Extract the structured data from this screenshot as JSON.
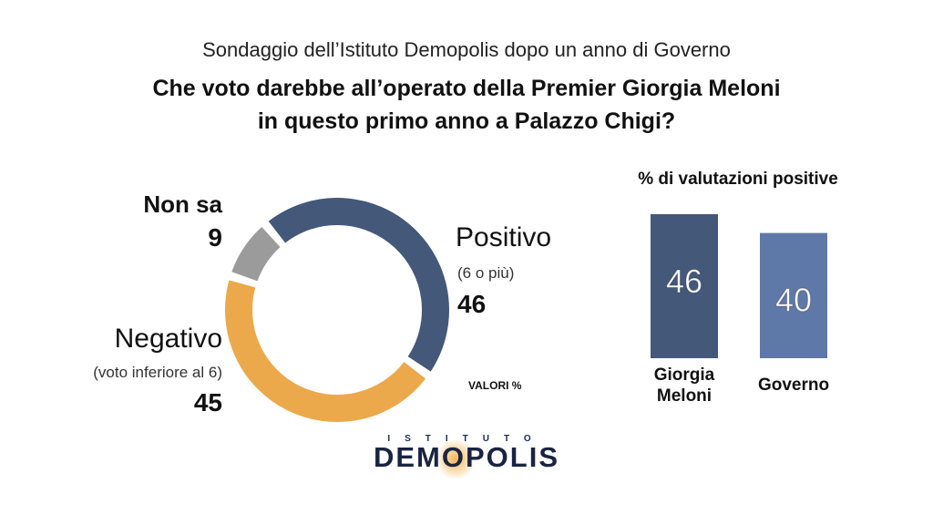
{
  "header": {
    "subtitle": "Sondaggio dell’Istituto Demopolis dopo un anno di Governo",
    "title_line1": "Che voto darebbe all’operato della Premier Giorgia Meloni",
    "title_line2": "in questo primo anno a Palazzo Chigi?"
  },
  "donut_labels": {
    "positivo": {
      "name": "Positivo",
      "note": "(6 o più)",
      "value": "46"
    },
    "negativo": {
      "name": "Negativo",
      "note": "(voto inferiore al 6)",
      "value": "45"
    },
    "nonsa": {
      "name": "Non sa",
      "value": "9"
    }
  },
  "valori_note": "VALORI %",
  "bars_title": "% di valutazioni positive",
  "logo": {
    "top": "ISTITUTO",
    "main": "DEMOPOLIS"
  },
  "chart_data": [
    {
      "type": "pie",
      "variant": "donut",
      "categories": [
        "Positivo",
        "Negativo",
        "Non sa"
      ],
      "values": [
        46,
        45,
        9
      ],
      "colors": [
        "#44587a",
        "#eba94c",
        "#9b9b9b"
      ]
    },
    {
      "type": "bar",
      "title": "% di valutazioni positive",
      "categories": [
        "Giorgia Meloni",
        "Governo"
      ],
      "category_lines": [
        [
          "Giorgia",
          "Meloni"
        ],
        [
          "Governo"
        ]
      ],
      "values": [
        46,
        40
      ],
      "colors": [
        "#44587a",
        "#5e79a8"
      ]
    }
  ]
}
